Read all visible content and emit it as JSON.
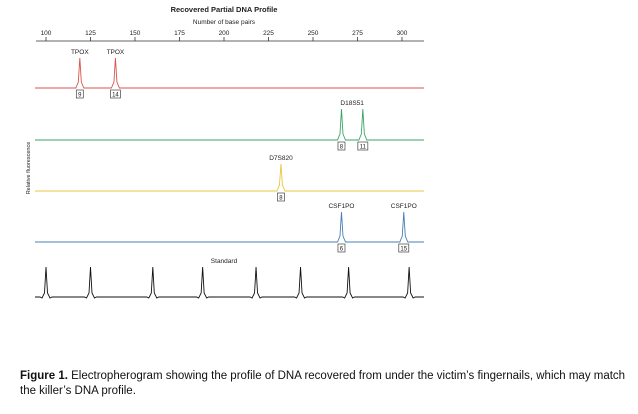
{
  "chart_data": {
    "type": "line",
    "title": "Recovered Partial DNA Profile",
    "xlabel": "Number of base pairs",
    "ylabel": "Relative fluorescence",
    "xlim": [
      100,
      300
    ],
    "xticks": [
      100,
      125,
      150,
      175,
      200,
      225,
      250,
      275,
      300
    ],
    "tick_labels": [
      "100",
      "125",
      "150",
      "175",
      "200",
      "225",
      "250",
      "275",
      "300"
    ],
    "series": [
      {
        "color": "#d9534f",
        "peaks": [
          {
            "x": 119,
            "locus": "TPOX",
            "allele": "9"
          },
          {
            "x": 139,
            "locus": "TPOX",
            "allele": "14"
          }
        ]
      },
      {
        "color": "#3aa66a",
        "peaks": [
          {
            "x": 266,
            "allele": "8"
          },
          {
            "x": 278,
            "allele": "11"
          }
        ],
        "locus_label": "D18S51"
      },
      {
        "color": "#e8c640",
        "peaks": [
          {
            "x": 232,
            "locus": "D7S820",
            "allele": "8"
          }
        ]
      },
      {
        "color": "#4a7fb5",
        "peaks": [
          {
            "x": 266,
            "locus": "CSF1PO",
            "allele": "6"
          },
          {
            "x": 301,
            "locus": "CSF1PO",
            "allele": "15"
          }
        ]
      },
      {
        "name": "Standard",
        "color": "#111111",
        "peaks": [
          {
            "x": 100
          },
          {
            "x": 125
          },
          {
            "x": 160
          },
          {
            "x": 188
          },
          {
            "x": 218
          },
          {
            "x": 243
          },
          {
            "x": 270
          },
          {
            "x": 304
          }
        ]
      }
    ]
  },
  "caption": {
    "label": "Figure 1.",
    "text": " Electropherogram showing the profile of DNA recovered from under the victim’s fingernails, which may match the killer’s DNA profile."
  }
}
